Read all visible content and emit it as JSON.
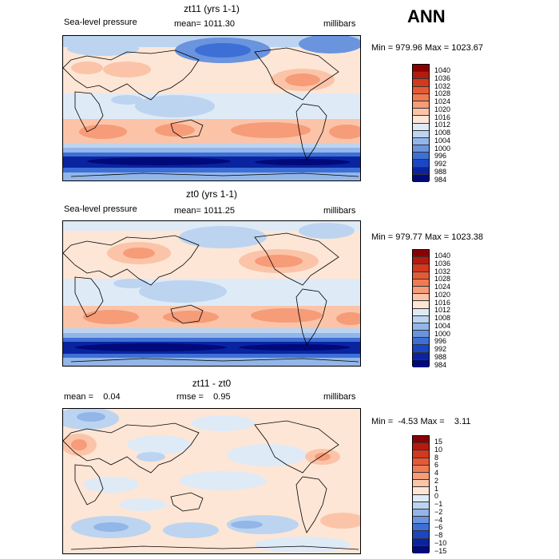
{
  "season": "ANN",
  "panels": [
    {
      "title": "zt11 (yrs 1-1)",
      "left_label": "Sea-level pressure",
      "center_label": "mean= 1011.30",
      "right_label": "millibars",
      "minmax": "Min = 979.96 Max = 1023.67",
      "colorbar": {
        "labels": [
          "1040",
          "1036",
          "1032",
          "1028",
          "1024",
          "1020",
          "1016",
          "1012",
          "1008",
          "1004",
          "1000",
          "996",
          "992",
          "988",
          "984"
        ],
        "colors": [
          "#8b0000",
          "#b31b0f",
          "#d2391f",
          "#e55a35",
          "#f07a52",
          "#f69c78",
          "#fbc4a8",
          "#fde6d6",
          "#dfeaf7",
          "#bcd4f0",
          "#93b6e8",
          "#6a94de",
          "#3e6fd6",
          "#1b47c4",
          "#0a24a0",
          "#000a7a"
        ]
      }
    },
    {
      "title": "zt0 (yrs 1-1)",
      "left_label": "Sea-level pressure",
      "center_label": "mean= 1011.25",
      "right_label": "millibars",
      "minmax": "Min = 979.77 Max = 1023.38",
      "colorbar": {
        "labels": [
          "1040",
          "1036",
          "1032",
          "1028",
          "1024",
          "1020",
          "1016",
          "1012",
          "1008",
          "1004",
          "1000",
          "996",
          "992",
          "988",
          "984"
        ],
        "colors": [
          "#8b0000",
          "#b31b0f",
          "#d2391f",
          "#e55a35",
          "#f07a52",
          "#f69c78",
          "#fbc4a8",
          "#fde6d6",
          "#dfeaf7",
          "#bcd4f0",
          "#93b6e8",
          "#6a94de",
          "#3e6fd6",
          "#1b47c4",
          "#0a24a0",
          "#000a7a"
        ]
      }
    },
    {
      "title": "zt11 - zt0",
      "left_label": "mean =    0.04",
      "center_label": "rmse =    0.95",
      "right_label": "millibars",
      "minmax": "Min =  -4.53 Max =    3.11",
      "colorbar": {
        "labels": [
          "15",
          "10",
          "8",
          "6",
          "4",
          "2",
          "1",
          "0",
          "−1",
          "−2",
          "−4",
          "−6",
          "−8",
          "−10",
          "−15"
        ],
        "colors": [
          "#8b0000",
          "#b31b0f",
          "#d2391f",
          "#e55a35",
          "#f07a52",
          "#f69c78",
          "#fbc4a8",
          "#fde6d6",
          "#dfeaf7",
          "#bcd4f0",
          "#93b6e8",
          "#6a94de",
          "#3e6fd6",
          "#1b47c4",
          "#0a24a0",
          "#000a7a"
        ]
      }
    }
  ]
}
